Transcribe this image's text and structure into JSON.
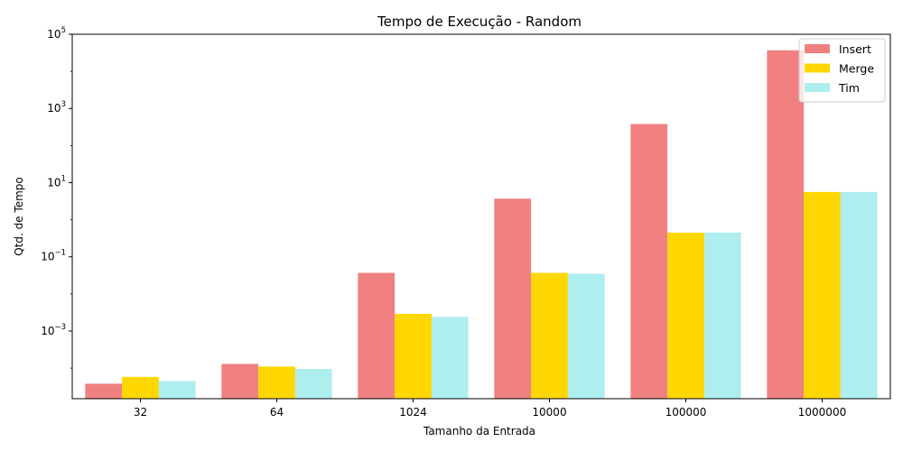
{
  "chart_data": {
    "type": "bar",
    "title": "Tempo de Execução - Random",
    "xlabel": "Tamanho da Entrada",
    "ylabel": "Qtd. de Tempo",
    "categories": [
      "32",
      "64",
      "1024",
      "10000",
      "100000",
      "1000000"
    ],
    "yscale": "log",
    "ylim": [
      1.5e-05,
      100000
    ],
    "yticks": [
      {
        "value": 0.001,
        "base": "10",
        "exp": "−3"
      },
      {
        "value": 0.1,
        "base": "10",
        "exp": "−1"
      },
      {
        "value": 10,
        "base": "10",
        "exp": "1"
      },
      {
        "value": 1000,
        "base": "10",
        "exp": "3"
      },
      {
        "value": 100000,
        "base": "10",
        "exp": "5"
      }
    ],
    "series": [
      {
        "name": "Insert",
        "color": "#f08080",
        "values": [
          3.8e-05,
          0.00013,
          0.037,
          3.7,
          380,
          37000
        ]
      },
      {
        "name": "Merge",
        "color": "#ffd700",
        "values": [
          5.8e-05,
          0.00011,
          0.0029,
          0.037,
          0.45,
          5.6
        ]
      },
      {
        "name": "Tim",
        "color": "#afeeee",
        "values": [
          4.5e-05,
          9.5e-05,
          0.0024,
          0.035,
          0.45,
          5.6
        ]
      }
    ],
    "legend": "top-right",
    "grid": false
  }
}
